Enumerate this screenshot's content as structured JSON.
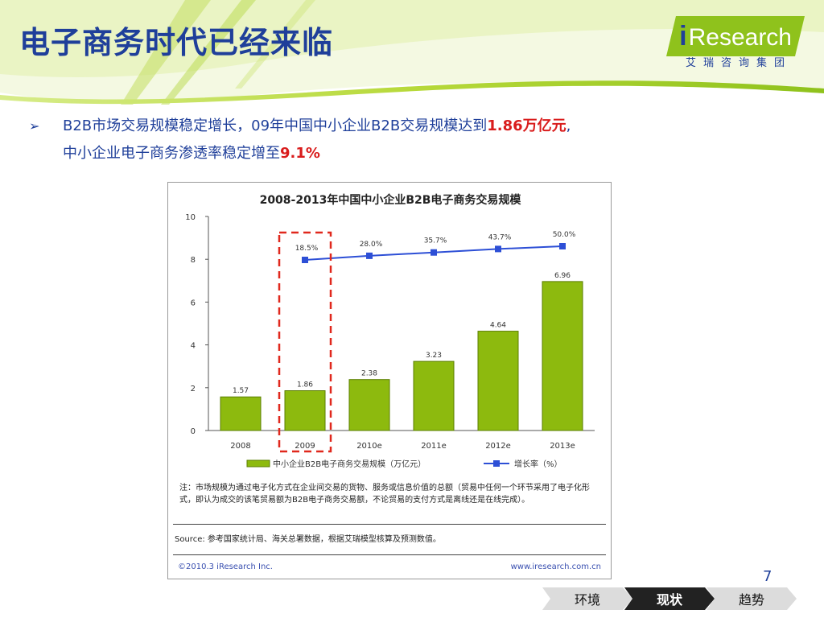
{
  "header": {
    "title": "电子商务时代已经来临",
    "logo_main": "Research",
    "logo_i": "i",
    "logo_sub": "艾瑞咨询集团"
  },
  "bullets": {
    "line1_a": "B2B市场交易规模稳定增长，09年中国中小企业B2B交易规模达到",
    "line1_hl": "1.86万亿元",
    "line1_end": ",",
    "line2_a": "中小企业电子商务渗透率稳定增至",
    "line2_hl": "9.1%"
  },
  "chart_data": {
    "type": "bar",
    "title": "2008-2013年中国中小企业B2B电子商务交易规模",
    "categories": [
      "2008",
      "2009",
      "2010e",
      "2011e",
      "2012e",
      "2013e"
    ],
    "ylim": [
      0,
      10
    ],
    "yticks": [
      "0",
      "2",
      "4",
      "6",
      "8",
      "10"
    ],
    "series": [
      {
        "name": "中小企业B2B电子商务交易规模（万亿元）",
        "type": "bar",
        "values": [
          1.57,
          1.86,
          2.38,
          3.23,
          4.64,
          6.96
        ],
        "labels": [
          "1.57",
          "1.86",
          "2.38",
          "3.23",
          "4.64",
          "6.96"
        ]
      },
      {
        "name": "增长率（%）",
        "type": "line",
        "values": [
          null,
          18.5,
          28.0,
          35.7,
          43.7,
          50.0
        ],
        "labels": [
          "",
          "18.5%",
          "28.0%",
          "35.7%",
          "43.7%",
          "50.0%"
        ]
      }
    ],
    "highlight_category": "2009",
    "colors": {
      "bar": "#8dba0e",
      "bar_edge": "#5a7d00",
      "line": "#2d4fd6",
      "highlight": "#e0281d"
    },
    "grid": false,
    "legend": "bottom"
  },
  "notes": {
    "note": "注：市场规模为通过电子化方式在企业间交易的货物、服务或信息价值的总额（贸易中任何一个环节采用了电子化形式，即认为成交的该笔贸易额为B2B电子商务交易额，不论贸易的支付方式是离线还是在线完成）。",
    "source": "Source: 参考国家统计局、海关总署数据，根据艾瑞模型核算及预测数值。",
    "copyright": "©2010.3 iResearch Inc.",
    "site": "www.iresearch.com.cn"
  },
  "footer": {
    "page": "7",
    "tabs": [
      {
        "label": "环境",
        "active": false
      },
      {
        "label": "现状",
        "active": true
      },
      {
        "label": "趋势",
        "active": false
      }
    ]
  }
}
